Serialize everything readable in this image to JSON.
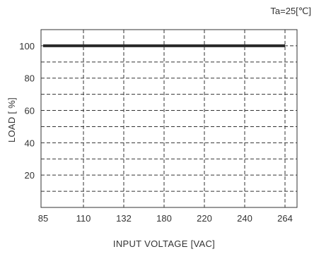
{
  "chart_data": {
    "type": "line",
    "title": "",
    "annotation": "Ta=25[℃]",
    "xlabel": "INPUT VOLTAGE [VAC]",
    "ylabel": "LOAD [ %]",
    "x_categories": [
      "85",
      "110",
      "132",
      "180",
      "220",
      "240",
      "264"
    ],
    "y_ticks": [
      20,
      40,
      60,
      80,
      100
    ],
    "ylim": [
      0,
      110
    ],
    "grid": true,
    "series": [
      {
        "x": [
          "85",
          "264"
        ],
        "values": [
          100,
          100
        ]
      }
    ],
    "colors": {
      "line": "#2a2a2a",
      "grid": "#333333",
      "frame": "#333333"
    }
  }
}
